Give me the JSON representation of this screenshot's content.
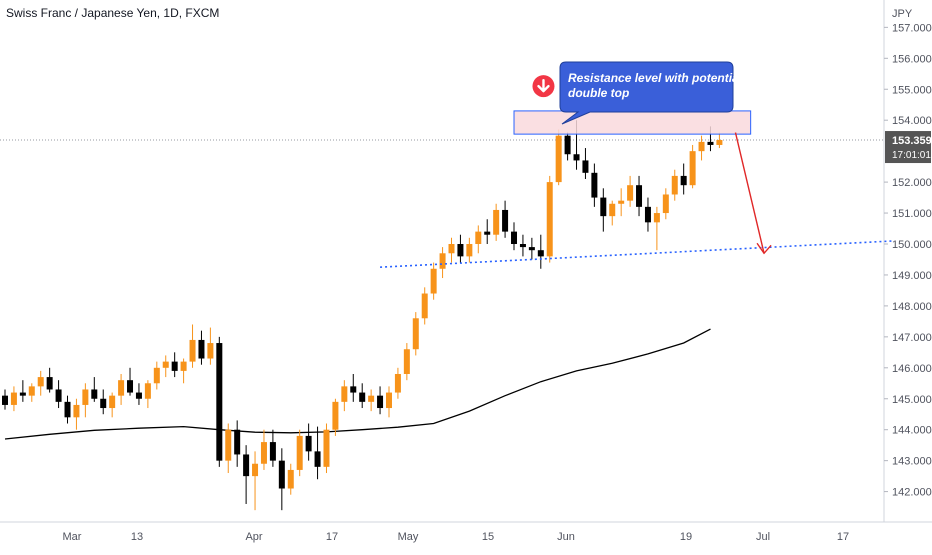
{
  "header": {
    "symbol_title": "Swiss Franc / Japanese Yen, 1D, FXCM"
  },
  "price_scale": {
    "currency": "JPY",
    "current_price": "153.359",
    "countdown": "17:01:01",
    "ticks": [
      "157.000",
      "156.000",
      "155.000",
      "154.000",
      "152.000",
      "151.000",
      "150.000",
      "149.000",
      "148.000",
      "147.000",
      "146.000",
      "145.000",
      "144.000",
      "143.000",
      "142.000"
    ]
  },
  "time_axis": {
    "labels": [
      "Mar",
      "13",
      "Apr",
      "17",
      "May",
      "15",
      "Jun",
      "19",
      "Jul",
      "17"
    ]
  },
  "annotation": {
    "callout_text": [
      "Resistance level with potential",
      "double top"
    ]
  },
  "colors": {
    "bull_candle": "#f7931a",
    "bear_candle": "#000000",
    "moving_average": "#000000",
    "resistance_fill": "#f9d9dd",
    "resistance_border": "#2962ff",
    "callout_fill": "#3a5fd9",
    "marker_red": "#f23645",
    "support_line": "#2962ff",
    "projection_arrow": "#e02828",
    "price_label_bg": "#555555"
  },
  "chart_data": {
    "type": "candlestick",
    "title": "Swiss Franc / Japanese Yen, 1D, FXCM",
    "ylabel": "JPY",
    "ylim": [
      141.4,
      157.4
    ],
    "x_categories": [
      "Mar",
      "13",
      "Apr",
      "17",
      "May",
      "15",
      "Jun",
      "19",
      "Jul",
      "17"
    ],
    "last_price": 153.359,
    "candles": [
      [
        145.1,
        145.3,
        144.65,
        144.8
      ],
      [
        144.8,
        145.4,
        144.6,
        145.2
      ],
      [
        145.2,
        145.6,
        144.9,
        145.1
      ],
      [
        145.1,
        145.5,
        144.9,
        145.4
      ],
      [
        145.4,
        145.9,
        145.1,
        145.7
      ],
      [
        145.7,
        146.0,
        145.2,
        145.3
      ],
      [
        145.3,
        145.6,
        144.7,
        144.9
      ],
      [
        144.9,
        145.1,
        144.2,
        144.4
      ],
      [
        144.4,
        145.0,
        144.0,
        144.8
      ],
      [
        144.8,
        145.5,
        144.4,
        145.3
      ],
      [
        145.3,
        145.7,
        144.9,
        145.0
      ],
      [
        145.0,
        145.3,
        144.5,
        144.7
      ],
      [
        144.7,
        145.2,
        144.4,
        145.1
      ],
      [
        145.1,
        145.8,
        144.8,
        145.6
      ],
      [
        145.6,
        146.0,
        145.1,
        145.2
      ],
      [
        145.2,
        145.5,
        144.8,
        145.0
      ],
      [
        145.0,
        145.6,
        144.7,
        145.5
      ],
      [
        145.5,
        146.2,
        145.3,
        146.0
      ],
      [
        146.0,
        146.4,
        145.7,
        146.2
      ],
      [
        146.2,
        146.5,
        145.7,
        145.9
      ],
      [
        145.9,
        146.3,
        145.5,
        146.2
      ],
      [
        146.2,
        147.4,
        146.0,
        146.9
      ],
      [
        146.9,
        147.2,
        146.1,
        146.3
      ],
      [
        146.3,
        147.3,
        146.1,
        146.8
      ],
      [
        146.8,
        147.0,
        142.8,
        143.0
      ],
      [
        143.0,
        144.2,
        142.6,
        144.0
      ],
      [
        144.0,
        144.3,
        142.8,
        143.2
      ],
      [
        143.2,
        143.5,
        141.6,
        142.5
      ],
      [
        142.5,
        143.3,
        141.4,
        142.9
      ],
      [
        142.9,
        144.0,
        142.7,
        143.6
      ],
      [
        143.6,
        144.0,
        142.8,
        143.0
      ],
      [
        143.0,
        143.4,
        141.4,
        142.1
      ],
      [
        142.1,
        142.9,
        141.9,
        142.7
      ],
      [
        142.7,
        144.0,
        142.5,
        143.8
      ],
      [
        143.8,
        144.2,
        143.0,
        143.3
      ],
      [
        143.3,
        144.1,
        142.4,
        142.8
      ],
      [
        142.8,
        144.2,
        142.6,
        144.0
      ],
      [
        144.0,
        145.0,
        143.8,
        144.9
      ],
      [
        144.9,
        145.6,
        144.6,
        145.4
      ],
      [
        145.4,
        145.8,
        144.9,
        145.2
      ],
      [
        145.2,
        145.5,
        144.7,
        144.9
      ],
      [
        144.9,
        145.3,
        144.6,
        145.1
      ],
      [
        145.1,
        145.4,
        144.5,
        144.7
      ],
      [
        144.7,
        145.4,
        144.4,
        145.2
      ],
      [
        145.2,
        146.0,
        145.0,
        145.8
      ],
      [
        145.8,
        146.8,
        145.6,
        146.6
      ],
      [
        146.6,
        147.8,
        146.4,
        147.6
      ],
      [
        147.6,
        148.6,
        147.4,
        148.4
      ],
      [
        148.4,
        149.4,
        148.2,
        149.2
      ],
      [
        149.2,
        149.9,
        148.9,
        149.7
      ],
      [
        149.7,
        150.2,
        149.4,
        150.0
      ],
      [
        150.0,
        150.3,
        149.4,
        149.6
      ],
      [
        149.6,
        150.2,
        149.4,
        150.0
      ],
      [
        150.0,
        150.6,
        149.7,
        150.4
      ],
      [
        150.4,
        150.8,
        150.0,
        150.3
      ],
      [
        150.3,
        151.3,
        150.1,
        151.1
      ],
      [
        151.1,
        151.4,
        150.2,
        150.4
      ],
      [
        150.4,
        150.7,
        149.8,
        150.0
      ],
      [
        150.0,
        150.3,
        149.6,
        149.9
      ],
      [
        149.9,
        150.2,
        149.5,
        149.8
      ],
      [
        149.8,
        150.3,
        149.2,
        149.6
      ],
      [
        149.6,
        152.2,
        149.4,
        152.0
      ],
      [
        152.0,
        153.7,
        151.9,
        153.5
      ],
      [
        153.5,
        153.6,
        152.7,
        152.9
      ],
      [
        152.9,
        154.0,
        152.4,
        152.7
      ],
      [
        152.7,
        153.1,
        152.1,
        152.3
      ],
      [
        152.3,
        152.6,
        151.2,
        151.5
      ],
      [
        151.5,
        151.8,
        150.4,
        150.9
      ],
      [
        150.9,
        151.4,
        150.6,
        151.3
      ],
      [
        151.3,
        151.8,
        150.9,
        151.4
      ],
      [
        151.4,
        152.2,
        151.2,
        151.9
      ],
      [
        151.9,
        152.2,
        150.9,
        151.2
      ],
      [
        151.2,
        151.5,
        150.4,
        150.7
      ],
      [
        150.7,
        151.2,
        149.8,
        151.0
      ],
      [
        151.0,
        151.8,
        150.8,
        151.6
      ],
      [
        151.6,
        152.4,
        151.4,
        152.2
      ],
      [
        152.2,
        152.6,
        151.6,
        151.9
      ],
      [
        151.9,
        153.2,
        151.8,
        153.0
      ],
      [
        153.0,
        153.5,
        152.7,
        153.3
      ],
      [
        153.3,
        153.8,
        153.0,
        153.2
      ],
      [
        153.2,
        153.6,
        153.1,
        153.36
      ]
    ],
    "moving_average": [
      [
        0,
        143.7
      ],
      [
        5,
        143.85
      ],
      [
        10,
        143.98
      ],
      [
        15,
        144.05
      ],
      [
        20,
        144.1
      ],
      [
        24,
        144.0
      ],
      [
        28,
        143.92
      ],
      [
        32,
        143.9
      ],
      [
        36,
        143.93
      ],
      [
        40,
        144.0
      ],
      [
        44,
        144.08
      ],
      [
        48,
        144.2
      ],
      [
        52,
        144.6
      ],
      [
        56,
        145.1
      ],
      [
        60,
        145.55
      ],
      [
        64,
        145.9
      ],
      [
        68,
        146.15
      ],
      [
        72,
        146.45
      ],
      [
        76,
        146.8
      ],
      [
        79,
        147.25
      ]
    ],
    "annotations": {
      "resistance_zone": {
        "x_from": 57,
        "x_to": 83.5,
        "y_low": 153.55,
        "y_high": 154.3
      },
      "top_markers": [
        {
          "x": 60.3,
          "y": 155.1
        },
        {
          "x": 74.6,
          "y": 155.1
        }
      ],
      "support_trendline": {
        "from": [
          42,
          149.25
        ],
        "to": [
          99.5,
          150.1
        ]
      },
      "projection_arrow": {
        "from": [
          81.8,
          153.6
        ],
        "to": [
          85,
          149.7
        ]
      }
    }
  }
}
